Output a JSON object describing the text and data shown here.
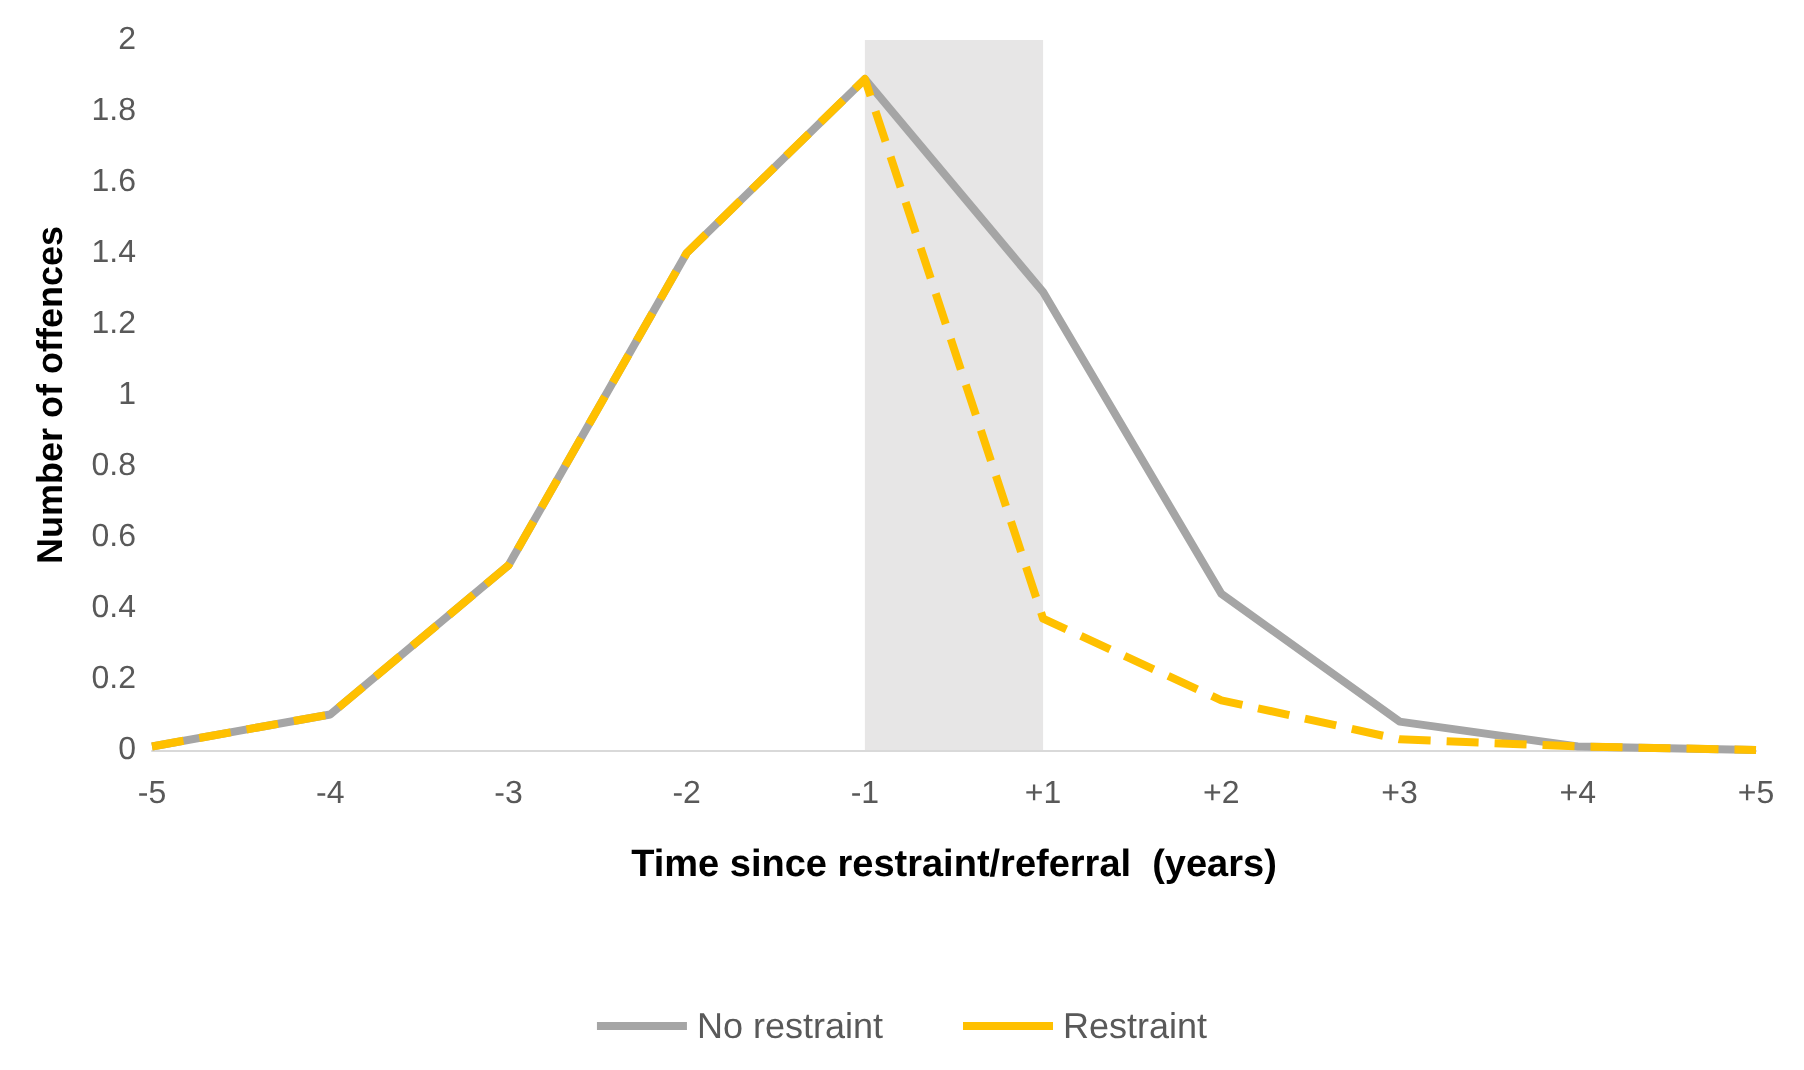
{
  "chart_data": {
    "type": "line",
    "xlabel": "Time since restraint/referral  (years)",
    "ylabel": "Number of offences",
    "categories": [
      "-5",
      "-4",
      "-3",
      "-2",
      "-1",
      "+1",
      "+2",
      "+3",
      "+4",
      "+5"
    ],
    "series": [
      {
        "name": "No restraint",
        "color": "#a5a5a5",
        "line_style": "solid",
        "values": [
          0.01,
          0.1,
          0.52,
          1.4,
          1.89,
          1.29,
          0.44,
          0.08,
          0.01,
          0
        ]
      },
      {
        "name": "Restraint",
        "color": "#ffc000",
        "line_style": "dashed",
        "values": [
          0.01,
          0.1,
          0.52,
          1.4,
          1.89,
          0.37,
          0.14,
          0.03,
          0.01,
          0
        ]
      }
    ],
    "ylim": [
      0,
      2
    ],
    "yticks": [
      0,
      0.2,
      0.4,
      0.6,
      0.8,
      1,
      1.2,
      1.4,
      1.6,
      1.8,
      2
    ],
    "bands": [
      {
        "axis": "x",
        "from": "-1",
        "to": "+1",
        "color": "#e7e6e6"
      }
    ],
    "grid": false,
    "legend": "bottom",
    "marker": "none"
  }
}
